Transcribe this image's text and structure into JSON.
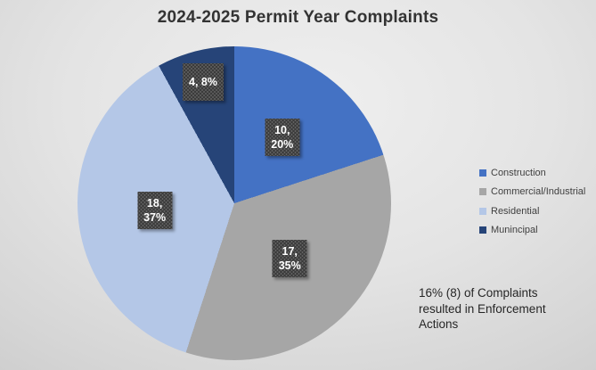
{
  "title": "2024-2025 Permit Year Complaints",
  "chart_data": {
    "type": "pie",
    "title": "2024-2025 Permit Year Complaints",
    "start_angle_deg": 0,
    "direction": "clockwise",
    "total": 49,
    "slices": [
      {
        "label": "Construction",
        "value": 10,
        "pct": 20,
        "color": "#4472C4",
        "data_label": "10,\n20%",
        "label_r_frac": 0.52
      },
      {
        "label": "Commercial/Industrial",
        "value": 17,
        "pct": 35,
        "color": "#A6A6A6",
        "data_label": "17,\n35%",
        "label_r_frac": 0.5
      },
      {
        "label": "Residential",
        "value": 18,
        "pct": 37,
        "color": "#B4C7E7",
        "data_label": "18,\n37%",
        "label_r_frac": 0.51
      },
      {
        "label": "Munincipal",
        "value": 4,
        "pct": 8,
        "color": "#264478",
        "data_label": "4, 8%",
        "label_r_frac": 0.8
      }
    ],
    "legend_position": "right",
    "data_label_style": {
      "background": "#3b3b3b",
      "pattern": "dotted-grid",
      "text_color": "#ffffff"
    },
    "annotation": "16% (8) of Complaints resulted in Enforcement Actions"
  }
}
